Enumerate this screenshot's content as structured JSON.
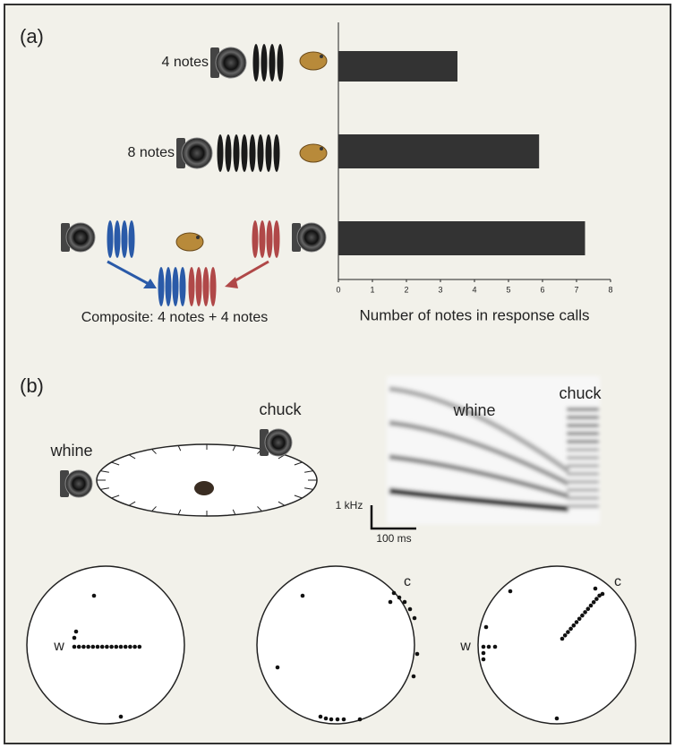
{
  "chart_data": {
    "type": "hbar",
    "categories": [
      "4 notes",
      "8 notes",
      "Composite: 4 notes + 4 notes"
    ],
    "values": [
      3.5,
      5.9,
      7.25
    ],
    "color": "#333333",
    "xlim": [
      0,
      8
    ],
    "xticks": [
      0,
      1,
      2,
      3,
      4,
      5,
      6,
      7,
      8
    ],
    "xlabel": "Number of notes in response calls"
  },
  "panel_a": {
    "label": "(a)"
  },
  "panel_b": {
    "label": "(b)",
    "setup": {
      "whine": "whine",
      "chuck": "chuck"
    },
    "spectrogram": {
      "whine": "whine",
      "chuck": "chuck",
      "freq_scale": "1 kHz",
      "time_scale": "100 ms"
    },
    "polar_plots": [
      {
        "whine": "w"
      },
      {
        "chuck": "c"
      },
      {
        "whine": "w",
        "chuck": "c"
      }
    ]
  }
}
